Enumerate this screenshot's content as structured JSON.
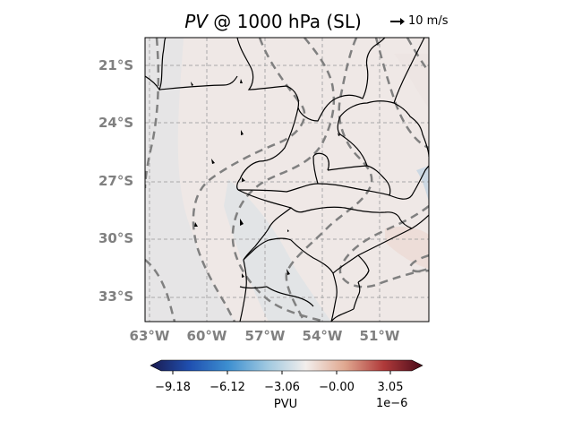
{
  "title": {
    "italic_part": "PV",
    "rest": " @ 1000 hPa (SL)"
  },
  "quiver_key": {
    "label": "10 m/s"
  },
  "latitude_labels": [
    "21°S",
    "24°S",
    "27°S",
    "30°S",
    "33°S"
  ],
  "longitude_labels": [
    "63°W",
    "60°W",
    "57°W",
    "54°W",
    "51°W"
  ],
  "colorbar": {
    "label": "PVU",
    "exponent": "1e−6",
    "ticks": [
      "−9.18",
      "−6.12",
      "−3.06",
      "−0.00",
      "3.05"
    ],
    "cmap": [
      "#1a1a4e",
      "#1f4fb0",
      "#3d8fd0",
      "#9fc8e0",
      "#f2eeec",
      "#e0a890",
      "#b03a3a",
      "#4a0b1a"
    ]
  },
  "colors": {
    "grid": "#a9a9a9",
    "contour": "#808080",
    "coast": "#000000",
    "map_fill": "#efe8e6"
  }
}
